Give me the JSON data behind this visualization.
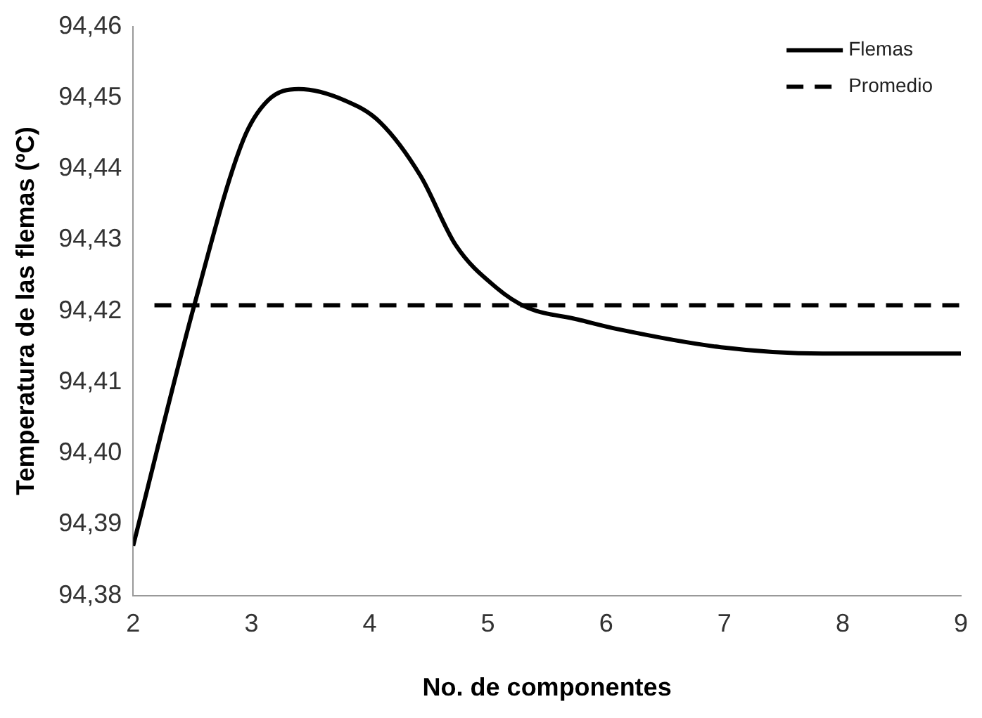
{
  "chart_data": {
    "type": "line",
    "xlabel": "No. de componentes",
    "ylabel": "Temperatura de las flemas (ºC)",
    "xlim": [
      2,
      9
    ],
    "xticks": [
      2,
      3,
      4,
      5,
      6,
      7,
      8,
      9
    ],
    "ylim": [
      94.38,
      94.46
    ],
    "yticks": [
      {
        "value": 94.38,
        "label": "94,38"
      },
      {
        "value": 94.39,
        "label": "94,39"
      },
      {
        "value": 94.4,
        "label": "94,40"
      },
      {
        "value": 94.41,
        "label": "94,41"
      },
      {
        "value": 94.42,
        "label": "94,42"
      },
      {
        "value": 94.43,
        "label": "94,43"
      },
      {
        "value": 94.44,
        "label": "94,44"
      },
      {
        "value": 94.45,
        "label": "94,45"
      },
      {
        "value": 94.46,
        "label": "94,46"
      }
    ],
    "grid": false,
    "legend": "top right",
    "marker": "none",
    "series": [
      {
        "name": "Flemas",
        "color": "#000000",
        "line_style": "solid",
        "x": [
          2,
          2.52,
          2.93,
          3.14,
          3.4,
          3.79,
          4.09,
          4.43,
          4.73,
          5.07,
          5.33,
          5.76,
          6.11,
          6.97,
          7.83,
          9
        ],
        "values": [
          94.387,
          94.421,
          94.444,
          94.4496,
          94.4512,
          94.4496,
          94.4465,
          94.439,
          94.4292,
          94.4233,
          94.4205,
          94.4188,
          94.4174,
          94.4149,
          94.414,
          94.414
        ]
      },
      {
        "name": "Promedio",
        "color": "#000000",
        "line_style": "dashed",
        "x": [
          2.18,
          9
        ],
        "values": [
          94.4208,
          94.4208
        ]
      }
    ]
  }
}
